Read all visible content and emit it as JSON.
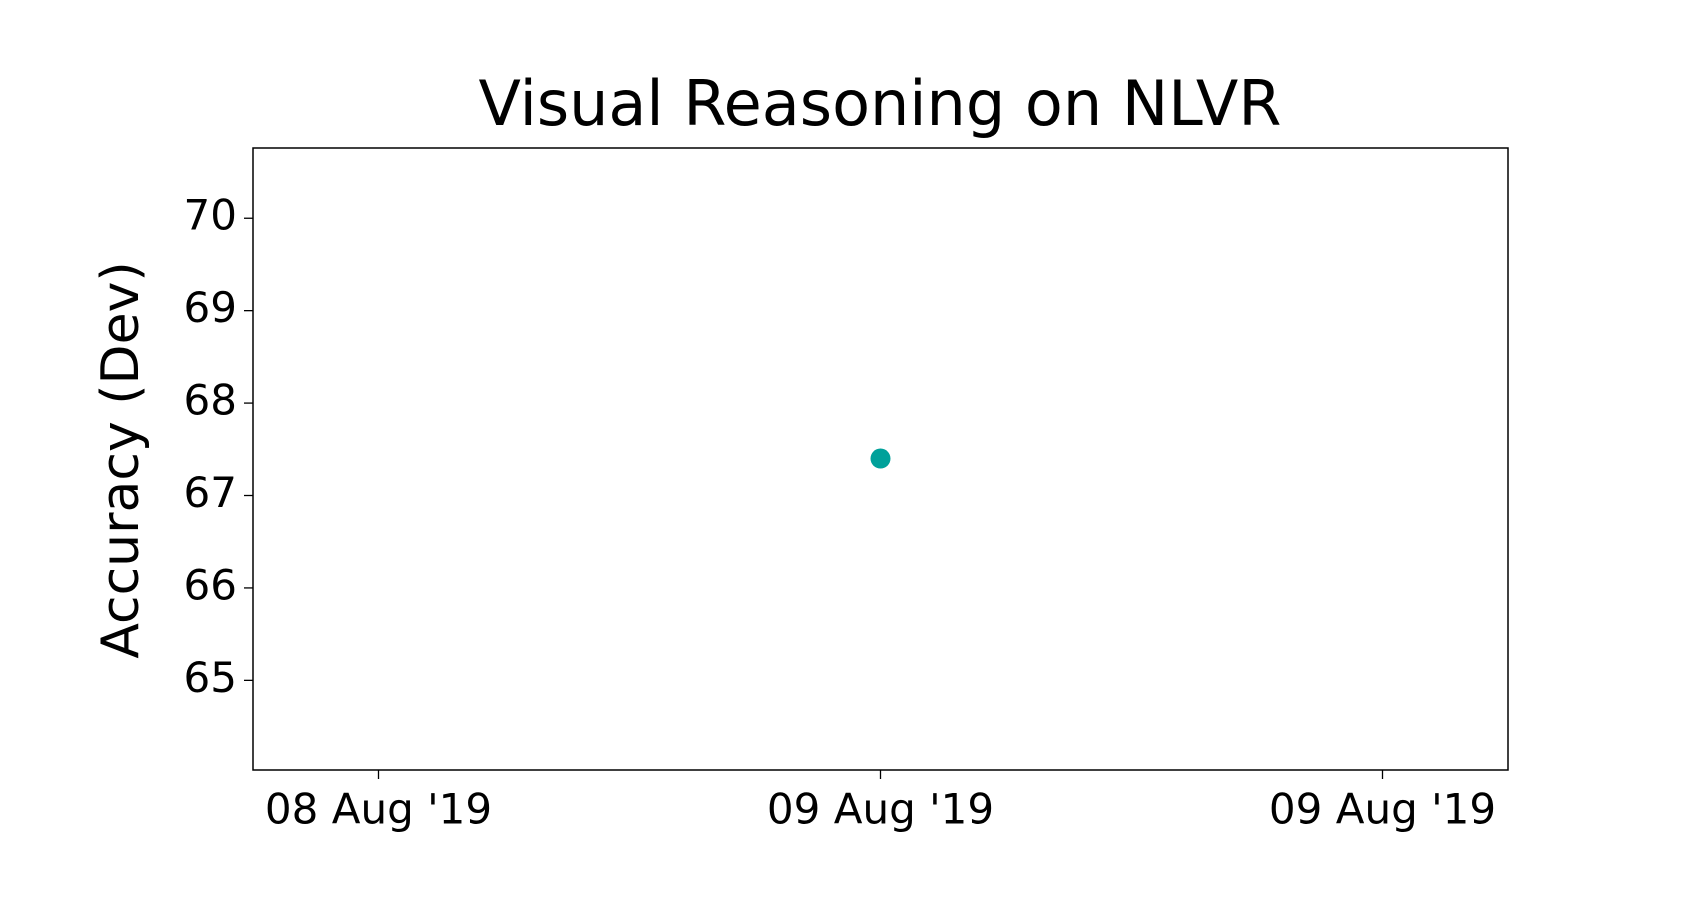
{
  "chart_data": {
    "type": "scatter",
    "title": "Visual Reasoning on NLVR",
    "ylabel": "Accuracy (Dev)",
    "x": [
      1
    ],
    "values": [
      67.4
    ],
    "color": "#00a19a",
    "xlim": [
      -0.25,
      2.25
    ],
    "xticks": [
      {
        "value": 0,
        "label": "08 Aug '19"
      },
      {
        "value": 1,
        "label": "09 Aug '19"
      },
      {
        "value": 2,
        "label": "09 Aug '19"
      }
    ],
    "ylim": [
      64.03,
      70.76
    ],
    "yticks": [
      65,
      66,
      67,
      68,
      69,
      70
    ]
  }
}
